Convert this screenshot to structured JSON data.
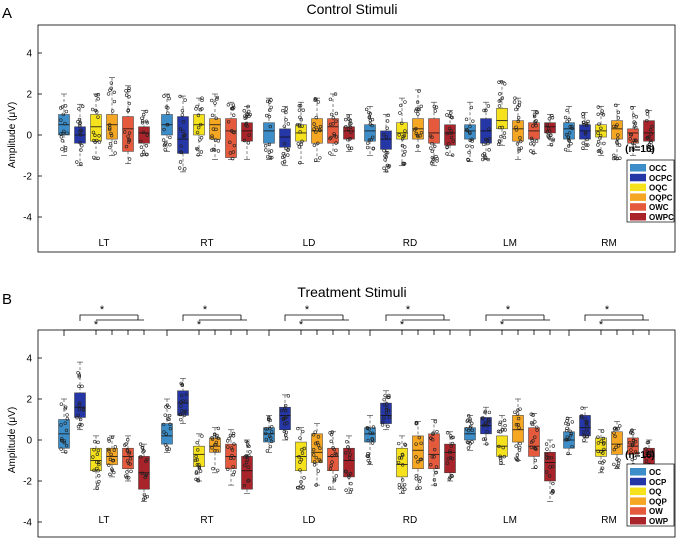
{
  "figure": {
    "panel_labels": [
      "A",
      "B"
    ]
  },
  "chart_data": [
    {
      "type": "box",
      "panel": "A",
      "title": "Control Stimuli",
      "xlabel": "",
      "ylabel": "Amplitude (μV)",
      "ylim": [
        -4.5,
        5.5
      ],
      "yticks": [
        -4,
        -2,
        0,
        2,
        4
      ],
      "grid": false,
      "categories": [
        "LT",
        "RT",
        "LD",
        "RD",
        "LM",
        "RM"
      ],
      "legend": {
        "title": "(n=16)",
        "position": "right"
      },
      "series": [
        {
          "name": "OCC",
          "color": "#3d8ec8",
          "boxes": [
            {
              "min": -1.0,
              "q1": 0.0,
              "median": 0.5,
              "q3": 1.0,
              "max": 2.0
            },
            {
              "min": -0.8,
              "q1": 0.0,
              "median": 0.5,
              "q3": 1.0,
              "max": 2.0
            },
            {
              "min": -1.2,
              "q1": -0.4,
              "median": 0.2,
              "q3": 0.6,
              "max": 1.8
            },
            {
              "min": -1.0,
              "q1": -0.3,
              "median": 0.2,
              "q3": 0.5,
              "max": 1.4
            },
            {
              "min": -1.3,
              "q1": -0.2,
              "median": 0.2,
              "q3": 0.5,
              "max": 1.6
            },
            {
              "min": -0.8,
              "q1": -0.2,
              "median": 0.3,
              "q3": 0.6,
              "max": 1.4
            }
          ]
        },
        {
          "name": "OCPC",
          "color": "#2536a6",
          "boxes": [
            {
              "min": -1.5,
              "q1": -0.4,
              "median": 0.0,
              "q3": 0.4,
              "max": 1.5
            },
            {
              "min": -1.8,
              "q1": -0.9,
              "median": -0.2,
              "q3": 0.9,
              "max": 1.9
            },
            {
              "min": -1.5,
              "q1": -0.6,
              "median": -0.1,
              "q3": 0.3,
              "max": 1.4
            },
            {
              "min": -1.8,
              "q1": -0.7,
              "median": -0.2,
              "q3": 0.2,
              "max": 1.0
            },
            {
              "min": -1.2,
              "q1": -0.4,
              "median": 0.2,
              "q3": 0.8,
              "max": 1.6
            },
            {
              "min": -0.7,
              "q1": -0.2,
              "median": 0.2,
              "q3": 0.5,
              "max": 1.1
            }
          ]
        },
        {
          "name": "OQC",
          "color": "#f5e21c",
          "boxes": [
            {
              "min": -1.2,
              "q1": -0.3,
              "median": 0.4,
              "q3": 1.0,
              "max": 2.0
            },
            {
              "min": -1.0,
              "q1": 0.0,
              "median": 0.5,
              "q3": 1.0,
              "max": 1.8
            },
            {
              "min": -1.4,
              "q1": -0.3,
              "median": 0.1,
              "q3": 0.5,
              "max": 1.6
            },
            {
              "min": -1.5,
              "q1": -0.2,
              "median": 0.1,
              "q3": 0.6,
              "max": 1.8
            },
            {
              "min": -0.5,
              "q1": 0.3,
              "median": 0.7,
              "q3": 1.3,
              "max": 2.6
            },
            {
              "min": -1.0,
              "q1": -0.1,
              "median": 0.2,
              "q3": 0.5,
              "max": 1.4
            }
          ]
        },
        {
          "name": "OQPC",
          "color": "#f5a623",
          "boxes": [
            {
              "min": -1.0,
              "q1": -0.2,
              "median": 0.5,
              "q3": 1.0,
              "max": 2.8
            },
            {
              "min": -1.2,
              "q1": -0.2,
              "median": 0.5,
              "q3": 0.8,
              "max": 2.0
            },
            {
              "min": -1.3,
              "q1": -0.4,
              "median": 0.2,
              "q3": 0.8,
              "max": 1.8
            },
            {
              "min": -0.8,
              "q1": -0.2,
              "median": 0.3,
              "q3": 0.8,
              "max": 2.2
            },
            {
              "min": -1.2,
              "q1": -0.3,
              "median": 0.3,
              "q3": 0.7,
              "max": 1.8
            },
            {
              "min": -1.2,
              "q1": -0.2,
              "median": 0.3,
              "q3": 0.7,
              "max": 1.5
            }
          ]
        },
        {
          "name": "OWC",
          "color": "#e55a3c",
          "boxes": [
            {
              "min": -1.4,
              "q1": -0.8,
              "median": 0.3,
              "q3": 0.9,
              "max": 2.4
            },
            {
              "min": -1.2,
              "q1": -1.1,
              "median": 0.2,
              "q3": 0.8,
              "max": 1.6
            },
            {
              "min": -1.0,
              "q1": -0.4,
              "median": 0.4,
              "q3": 0.8,
              "max": 2.0
            },
            {
              "min": -1.5,
              "q1": -0.4,
              "median": 0.1,
              "q3": 0.8,
              "max": 1.6
            },
            {
              "min": -0.9,
              "q1": -0.2,
              "median": 0.2,
              "q3": 0.6,
              "max": 1.2
            },
            {
              "min": -1.0,
              "q1": -0.4,
              "median": 0.1,
              "q3": 0.3,
              "max": 1.4
            }
          ]
        },
        {
          "name": "OWPC",
          "color": "#a8242a",
          "boxes": [
            {
              "min": -1.0,
              "q1": -0.4,
              "median": 0.1,
              "q3": 0.4,
              "max": 1.2
            },
            {
              "min": -1.2,
              "q1": -0.3,
              "median": 0.2,
              "q3": 0.6,
              "max": 1.4
            },
            {
              "min": -0.8,
              "q1": -0.2,
              "median": 0.2,
              "q3": 0.4,
              "max": 1.0
            },
            {
              "min": -1.0,
              "q1": -0.5,
              "median": 0.1,
              "q3": 0.5,
              "max": 1.2
            },
            {
              "min": -0.5,
              "q1": 0.1,
              "median": 0.4,
              "q3": 0.6,
              "max": 1.0
            },
            {
              "min": -0.8,
              "q1": -0.3,
              "median": 0.1,
              "q3": 0.7,
              "max": 1.2
            }
          ]
        }
      ]
    },
    {
      "type": "box",
      "panel": "B",
      "title": "Treatment Stimuli",
      "xlabel": "",
      "ylabel": "Amplitude (μV)",
      "ylim": [
        -4.5,
        5.5
      ],
      "yticks": [
        -4,
        -2,
        0,
        2,
        4
      ],
      "grid": false,
      "categories": [
        "LT",
        "RT",
        "LD",
        "RD",
        "LM",
        "RM"
      ],
      "legend": {
        "title": "(n=16)",
        "position": "right"
      },
      "significance_marker": "*",
      "series": [
        {
          "name": "OC",
          "color": "#3d8ec8",
          "boxes": [
            {
              "min": -0.6,
              "q1": -0.4,
              "median": 0.3,
              "q3": 1.0,
              "max": 2.0
            },
            {
              "min": -0.6,
              "q1": -0.2,
              "median": 0.2,
              "q3": 0.8,
              "max": 2.0
            },
            {
              "min": -0.6,
              "q1": -0.1,
              "median": 0.3,
              "q3": 0.6,
              "max": 1.2
            },
            {
              "min": -1.2,
              "q1": -0.1,
              "median": 0.3,
              "q3": 0.6,
              "max": 1.2
            },
            {
              "min": -0.5,
              "q1": 0.0,
              "median": 0.3,
              "q3": 0.6,
              "max": 1.2
            },
            {
              "min": -0.7,
              "q1": -0.4,
              "median": 0.0,
              "q3": 0.4,
              "max": 1.1
            }
          ]
        },
        {
          "name": "OCP",
          "color": "#2536a6",
          "boxes": [
            {
              "min": 0.5,
              "q1": 1.1,
              "median": 1.6,
              "q3": 2.3,
              "max": 3.8
            },
            {
              "min": 0.8,
              "q1": 1.2,
              "median": 1.8,
              "q3": 2.4,
              "max": 3.0
            },
            {
              "min": 0.0,
              "q1": 0.5,
              "median": 1.2,
              "q3": 1.6,
              "max": 2.2
            },
            {
              "min": 0.5,
              "q1": 0.8,
              "median": 1.2,
              "q3": 1.8,
              "max": 2.4
            },
            {
              "min": -0.2,
              "q1": 0.3,
              "median": 0.7,
              "q3": 1.1,
              "max": 1.6
            },
            {
              "min": -0.1,
              "q1": 0.2,
              "median": 0.6,
              "q3": 1.2,
              "max": 1.6
            }
          ]
        },
        {
          "name": "OQ",
          "color": "#f5e21c",
          "boxes": [
            {
              "min": -2.4,
              "q1": -1.5,
              "median": -1.0,
              "q3": -0.4,
              "max": 0.2
            },
            {
              "min": -2.0,
              "q1": -1.3,
              "median": -0.7,
              "q3": -0.3,
              "max": 0.3
            },
            {
              "min": -2.4,
              "q1": -1.5,
              "median": -0.8,
              "q3": -0.1,
              "max": 0.6
            },
            {
              "min": -2.6,
              "q1": -1.8,
              "median": -1.2,
              "q3": -0.4,
              "max": 0.2
            },
            {
              "min": -1.2,
              "q1": -0.8,
              "median": -0.3,
              "q3": 0.2,
              "max": 1.2
            },
            {
              "min": -1.6,
              "q1": -0.8,
              "median": -0.5,
              "q3": 0.1,
              "max": 0.5
            }
          ]
        },
        {
          "name": "OQP",
          "color": "#f5a623",
          "boxes": [
            {
              "min": -1.8,
              "q1": -1.2,
              "median": -0.8,
              "q3": -0.4,
              "max": 0.2
            },
            {
              "min": -1.6,
              "q1": -0.6,
              "median": -0.3,
              "q3": 0.1,
              "max": 0.6
            },
            {
              "min": -2.2,
              "q1": -1.1,
              "median": -0.6,
              "q3": 0.3,
              "max": 0.8
            },
            {
              "min": -2.4,
              "q1": -1.4,
              "median": -0.5,
              "q3": 0.2,
              "max": 0.9
            },
            {
              "min": -1.0,
              "q1": -0.1,
              "median": 0.5,
              "q3": 1.2,
              "max": 2.0
            },
            {
              "min": -1.4,
              "q1": -0.7,
              "median": -0.2,
              "q3": 0.4,
              "max": 0.9
            }
          ]
        },
        {
          "name": "OW",
          "color": "#e55a3c",
          "boxes": [
            {
              "min": -2.0,
              "q1": -1.4,
              "median": -0.8,
              "q3": -0.4,
              "max": 0.2
            },
            {
              "min": -2.2,
              "q1": -1.4,
              "median": -0.8,
              "q3": -0.2,
              "max": 0.5
            },
            {
              "min": -2.4,
              "q1": -1.5,
              "median": -0.8,
              "q3": -0.4,
              "max": 0.4
            },
            {
              "min": -2.2,
              "q1": -1.4,
              "median": -0.7,
              "q3": 0.3,
              "max": 1.0
            },
            {
              "min": -1.4,
              "q1": -0.8,
              "median": -0.3,
              "q3": 0.6,
              "max": 1.3
            },
            {
              "min": -1.2,
              "q1": -0.7,
              "median": -0.3,
              "q3": 0.1,
              "max": 0.5
            }
          ]
        },
        {
          "name": "OWP",
          "color": "#a8242a",
          "boxes": [
            {
              "min": -3.0,
              "q1": -2.4,
              "median": -1.6,
              "q3": -0.8,
              "max": -0.2
            },
            {
              "min": -2.6,
              "q1": -2.4,
              "median": -1.5,
              "q3": -0.8,
              "max": 0.0
            },
            {
              "min": -2.6,
              "q1": -1.8,
              "median": -1.0,
              "q3": -0.4,
              "max": 0.2
            },
            {
              "min": -2.0,
              "q1": -1.6,
              "median": -0.6,
              "q3": -0.2,
              "max": 0.4
            },
            {
              "min": -3.0,
              "q1": -2.0,
              "median": -1.1,
              "q3": -0.6,
              "max": 0.0
            },
            {
              "min": -2.2,
              "q1": -1.4,
              "median": -0.8,
              "q3": -0.4,
              "max": 0.0
            }
          ]
        }
      ]
    }
  ]
}
